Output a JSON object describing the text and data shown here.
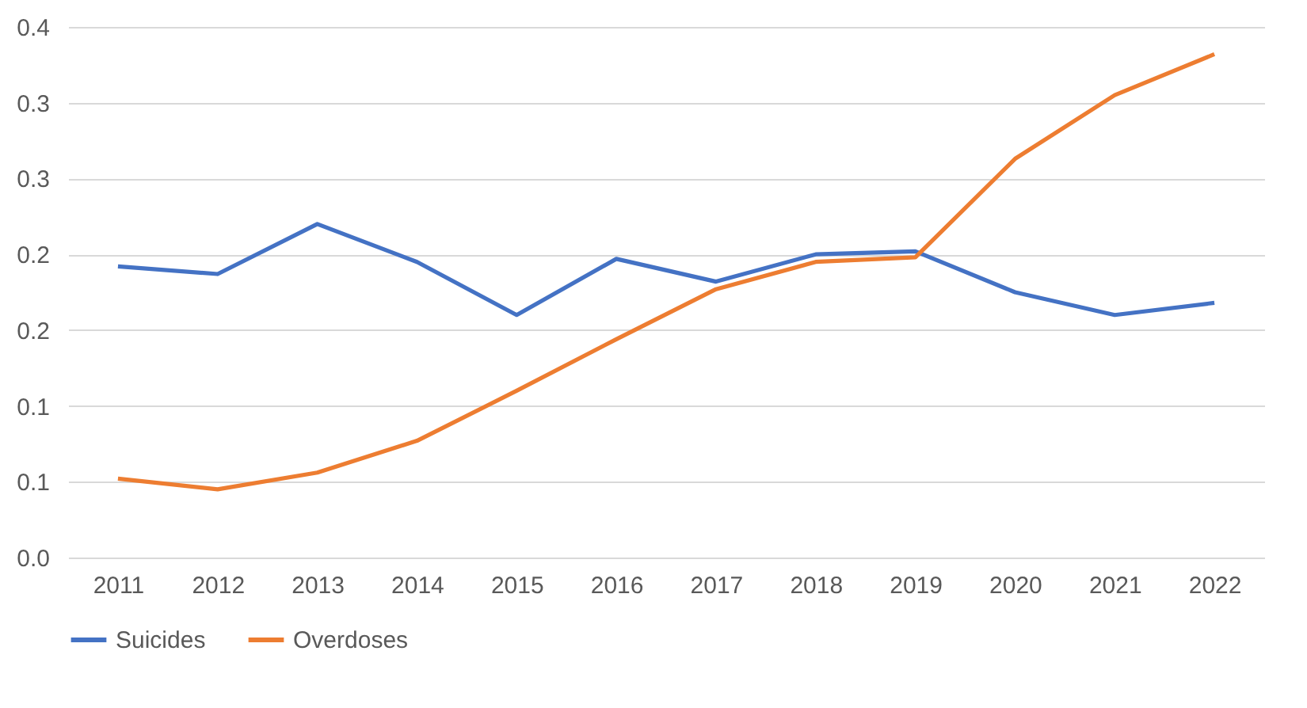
{
  "chart_data": {
    "type": "line",
    "categories": [
      "2011",
      "2012",
      "2013",
      "2014",
      "2015",
      "2016",
      "2017",
      "2018",
      "2019",
      "2020",
      "2021",
      "2022"
    ],
    "series": [
      {
        "name": "Suicides",
        "color": "#4472c4",
        "values": [
          0.192,
          0.187,
          0.22,
          0.195,
          0.16,
          0.197,
          0.182,
          0.2,
          0.202,
          0.175,
          0.16,
          0.168
        ]
      },
      {
        "name": "Overdoses",
        "color": "#ed7d31",
        "values": [
          0.052,
          0.045,
          0.056,
          0.077,
          0.11,
          0.144,
          0.177,
          0.195,
          0.198,
          0.263,
          0.305,
          0.332
        ]
      }
    ],
    "ylim": [
      0,
      0.35
    ],
    "yticks": [
      {
        "value": 0,
        "label": "0.0"
      },
      {
        "value": 0.05,
        "label": "0.1"
      },
      {
        "value": 0.1,
        "label": "0.1"
      },
      {
        "value": 0.15,
        "label": "0.2"
      },
      {
        "value": 0.2,
        "label": "0.2"
      },
      {
        "value": 0.25,
        "label": "0.3"
      },
      {
        "value": 0.3,
        "label": "0.3"
      },
      {
        "value": 0.35,
        "label": "0.4"
      }
    ],
    "grid": "y",
    "legend": "bottom",
    "marker": "none",
    "line_style": "solid"
  }
}
